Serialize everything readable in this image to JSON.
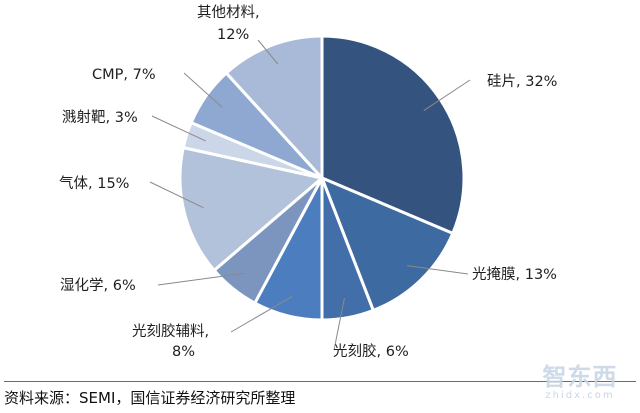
{
  "chart_data": {
    "type": "pie",
    "slices": [
      {
        "label": "硅片, 32%",
        "value": 32,
        "color": "#34547f"
      },
      {
        "label": "光掩膜, 13%",
        "value": 13,
        "color": "#3d6aa1"
      },
      {
        "label": "光刻胶, 6%",
        "value": 6,
        "color": "#426ea9"
      },
      {
        "label": "光刻胶辅料, 8%",
        "value": 8,
        "color": "#4b7dbf"
      },
      {
        "label": "湿化学, 6%",
        "value": 6,
        "color": "#7b95be"
      },
      {
        "label": "气体, 15%",
        "value": 15,
        "color": "#b3c2db"
      },
      {
        "label": "溅射靶, 3%",
        "value": 3,
        "color": "#cbd6e8"
      },
      {
        "label": "CMP, 7%",
        "value": 7,
        "color": "#8ea8d1"
      },
      {
        "label": "其他材料, 12%",
        "value": 12,
        "color": "#a9b9d8"
      }
    ]
  },
  "source_note": "资料来源：SEMI，国信证券经济研究所整理",
  "watermark": {
    "main": "智东西",
    "sub": "zhidx.com"
  }
}
